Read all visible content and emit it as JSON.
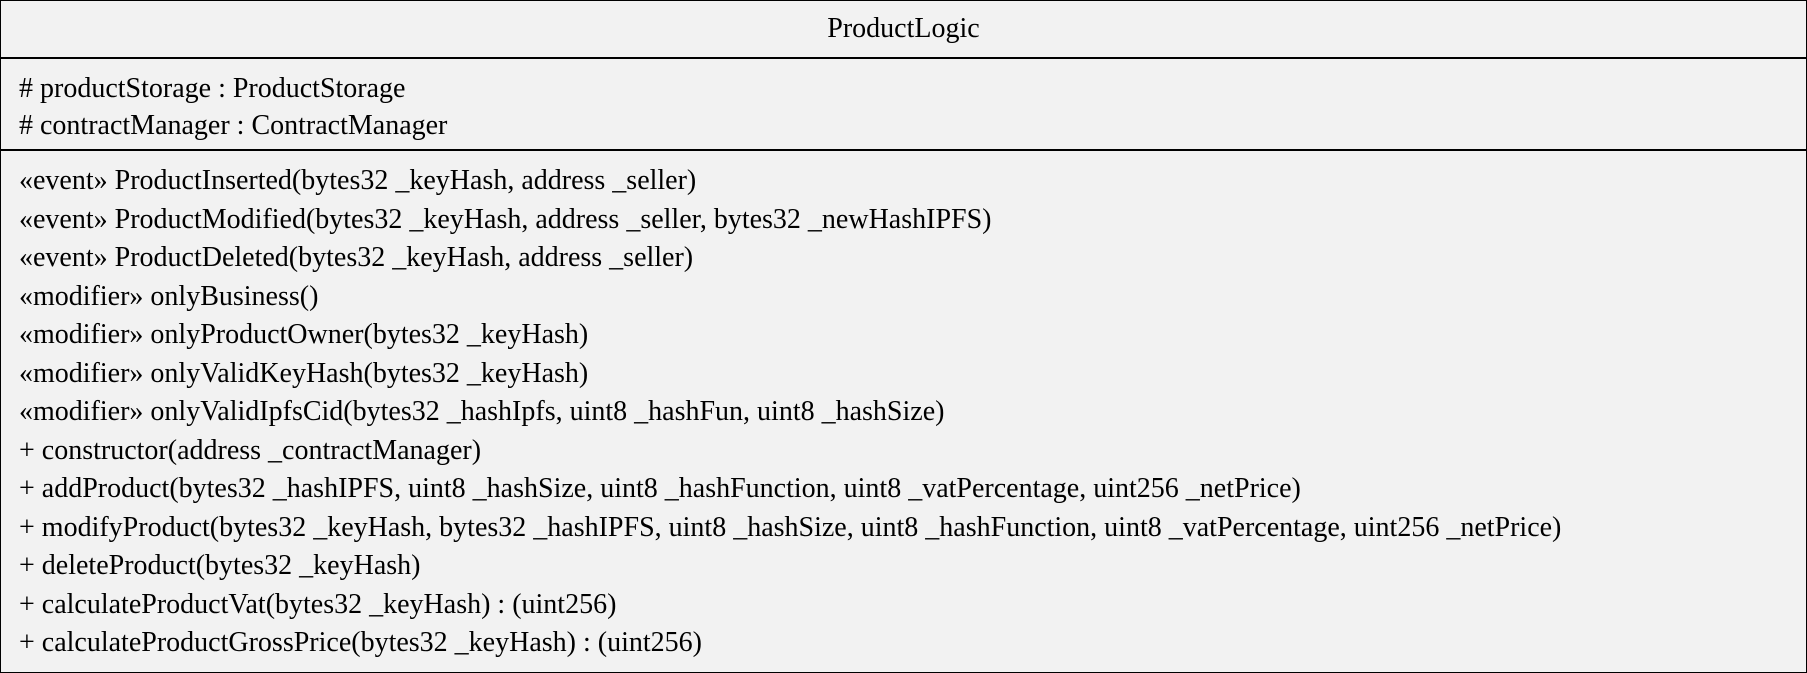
{
  "class_name": "ProductLogic",
  "attributes": [
    "# productStorage : ProductStorage",
    "# contractManager : ContractManager"
  ],
  "operations": [
    "«event» ProductInserted(bytes32 _keyHash, address _seller)",
    "«event» ProductModified(bytes32 _keyHash, address _seller, bytes32 _newHashIPFS)",
    "«event» ProductDeleted(bytes32 _keyHash, address _seller)",
    "«modifier» onlyBusiness()",
    "«modifier» onlyProductOwner(bytes32 _keyHash)",
    "«modifier» onlyValidKeyHash(bytes32 _keyHash)",
    "«modifier» onlyValidIpfsCid(bytes32 _hashIpfs, uint8 _hashFun, uint8 _hashSize)",
    "+ constructor(address _contractManager)",
    "+ addProduct(bytes32 _hashIPFS, uint8 _hashSize, uint8 _hashFunction, uint8 _vatPercentage, uint256 _netPrice)",
    "+ modifyProduct(bytes32 _keyHash, bytes32 _hashIPFS, uint8 _hashSize, uint8 _hashFunction, uint8 _vatPercentage, uint256 _netPrice)",
    "+ deleteProduct(bytes32 _keyHash)",
    "+ calculateProductVat(bytes32 _keyHash) : (uint256)",
    "+ calculateProductGrossPrice(bytes32 _keyHash) : (uint256)"
  ],
  "colors": {
    "background": "#f2f2f2",
    "border": "#000000",
    "text": "#000000"
  }
}
